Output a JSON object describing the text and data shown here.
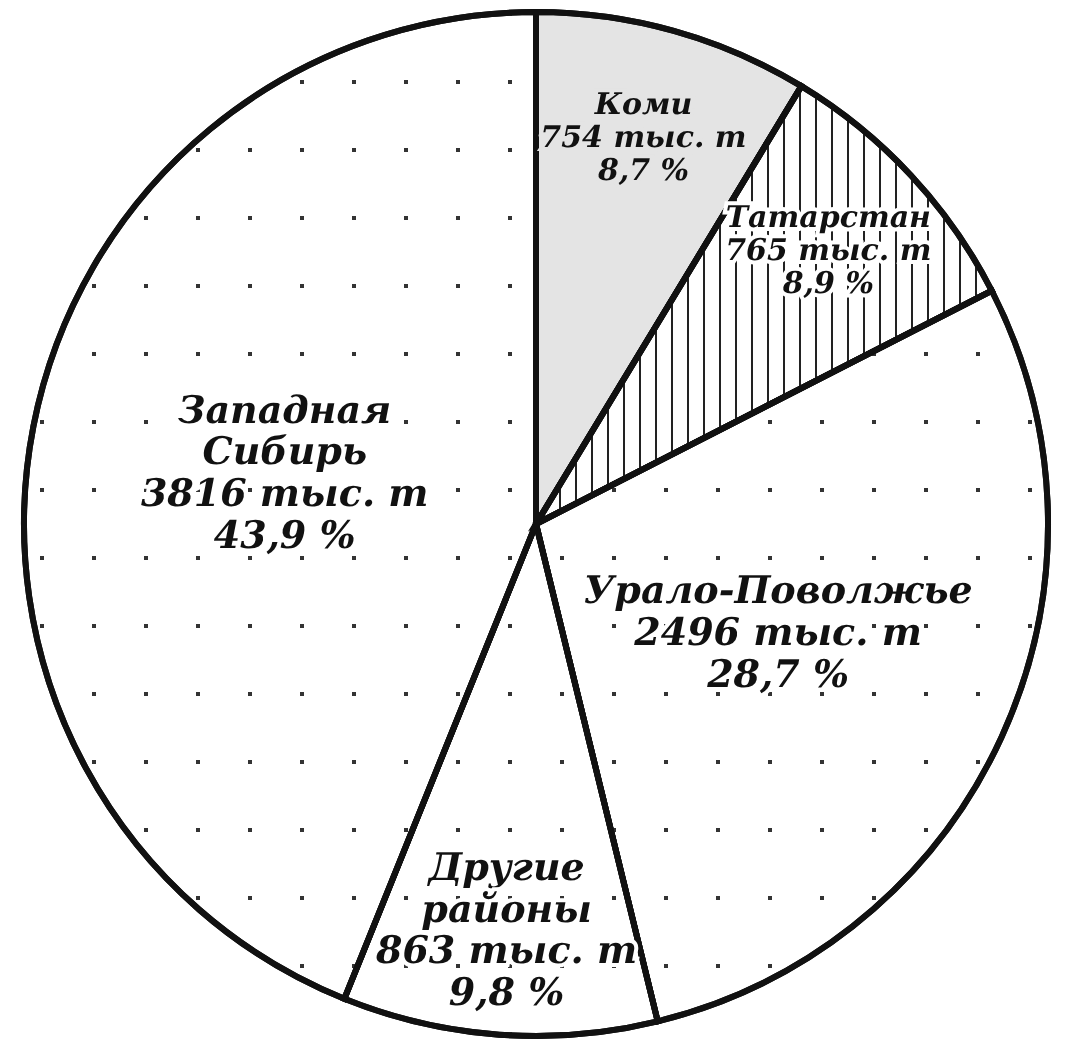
{
  "chart_data": {
    "type": "pie",
    "categories": [
      "Коми",
      "Татарстан",
      "Урало-Поволжье",
      "Другие районы",
      "Западная Сибирь"
    ],
    "values": [
      754,
      765,
      2496,
      863,
      3816
    ],
    "colors": [
      "#e4e4e4",
      "#ffffff",
      "#ffffff",
      "#ffffff",
      "#ffffff"
    ],
    "value_labels": [
      "754 тыс. т\n8,7 %",
      "765 тыс. т\n8,9 %",
      "2496 тыс. т\n28,7 %",
      "863 тыс. т\n9,8 %",
      "3816 тыс. т\n43,9 %"
    ]
  }
}
